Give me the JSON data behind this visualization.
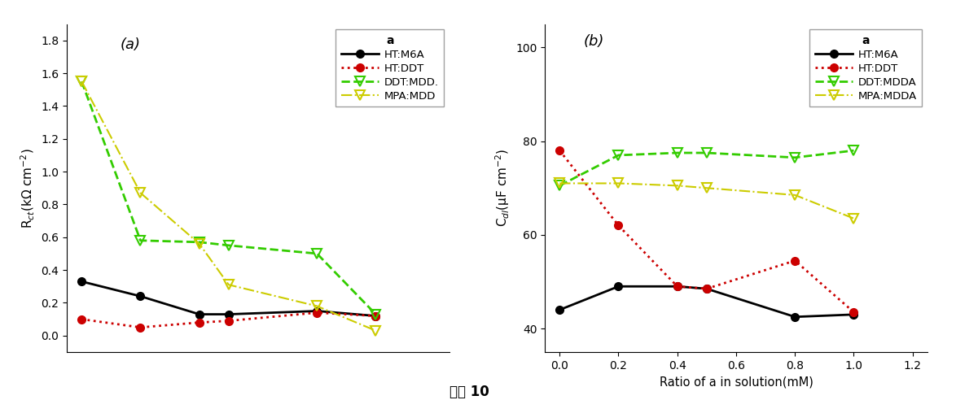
{
  "x_values": [
    0.0,
    0.2,
    0.4,
    0.5,
    0.8,
    1.0
  ],
  "left_HT_M6A_y": [
    0.33,
    0.24,
    0.13,
    0.13,
    0.15,
    0.12
  ],
  "left_HT_DDT_y": [
    0.1,
    0.05,
    0.08,
    0.09,
    0.14,
    0.12
  ],
  "left_DDT_MDDA_y": [
    1.55,
    0.58,
    0.57,
    0.55,
    0.5,
    0.13
  ],
  "left_MPA_MDDA_y": [
    1.55,
    0.87,
    0.56,
    0.31,
    0.18,
    0.03
  ],
  "right_HT_M6A_y": [
    44.0,
    49.0,
    49.0,
    48.5,
    42.5,
    43.0
  ],
  "right_HT_DDT_y": [
    78.0,
    62.0,
    49.0,
    48.5,
    54.5,
    43.5
  ],
  "right_DDT_MDDA_y": [
    70.5,
    77.0,
    77.5,
    77.5,
    76.5,
    78.0
  ],
  "right_MPA_MDDA_y": [
    71.0,
    71.0,
    70.5,
    70.0,
    68.5,
    63.5
  ],
  "left_ylabel": "R$_{ct}$(kΩ cm$^{-2}$)",
  "right_ylabel": "C$_{dl}$(μF cm$^{-2}$)",
  "right_xlabel": "Ratio of a in solution(mM)",
  "bottom_label": "그림 10",
  "left_ylim": [
    -0.1,
    1.9
  ],
  "left_yticks": [
    0.0,
    0.2,
    0.4,
    0.6,
    0.8,
    1.0,
    1.2,
    1.4,
    1.6,
    1.8
  ],
  "right_ylim": [
    35,
    105
  ],
  "right_yticks": [
    40,
    60,
    80,
    100
  ],
  "right_xticks": [
    0.0,
    0.2,
    0.4,
    0.6,
    0.8,
    1.0,
    1.2
  ],
  "xlim": [
    -0.05,
    1.25
  ],
  "left_legend_labels": [
    "HT:M6A",
    "HT:DDT",
    "DDT:MDD.",
    "MPA:MDD"
  ],
  "right_legend_labels": [
    "HT:M6A",
    "HT:DDT",
    "DDT:MDDA",
    "MPA:MDDA"
  ],
  "colors": [
    "#000000",
    "#cc0000",
    "#33cc00",
    "#cccc00"
  ],
  "left_label": "(a)",
  "right_label": "(b)",
  "bg_color": "#f0f0f0"
}
